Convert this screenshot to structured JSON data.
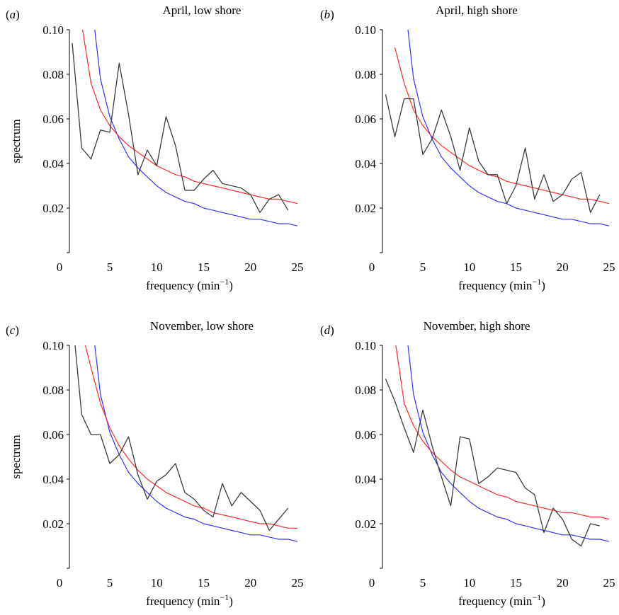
{
  "figure": {
    "xlabel_main": "frequency (min",
    "xlabel_sup": "−1",
    "xlabel_close": ")",
    "ylabel": "spectrum"
  },
  "colors": {
    "observed": "#3a3a3a",
    "fit_red": "#ff2a2a",
    "fit_blue": "#3333ff",
    "axis": "#000000"
  },
  "chart_data": [
    {
      "panel": "a",
      "type": "line",
      "title": "April, low shore",
      "xlim": [
        0,
        25
      ],
      "ylim": [
        0,
        0.1
      ],
      "x_ticks": [
        "0",
        "5",
        "10",
        "15",
        "20",
        "25"
      ],
      "y_ticks": [
        "0.02",
        "0.04",
        "0.06",
        "0.08",
        "0.10"
      ],
      "series": [
        {
          "color": "#3a3a3a",
          "x": [
            1,
            2,
            3,
            4,
            5,
            6,
            7,
            8,
            9,
            10,
            11,
            12,
            13,
            14,
            15,
            16,
            17,
            18,
            19,
            20,
            21,
            22,
            23,
            24
          ],
          "y": [
            0.094,
            0.047,
            0.042,
            0.055,
            0.054,
            0.085,
            0.062,
            0.035,
            0.046,
            0.039,
            0.061,
            0.048,
            0.028,
            0.028,
            0.033,
            0.037,
            0.031,
            0.03,
            0.029,
            0.026,
            0.018,
            0.024,
            0.026,
            0.019
          ]
        },
        {
          "color": "#ff2a2a",
          "x": [
            2.1,
            3,
            4,
            5,
            6,
            7,
            8,
            9,
            10,
            11,
            12,
            13,
            14,
            15,
            16,
            17,
            18,
            19,
            20,
            21,
            22,
            23,
            24,
            25
          ],
          "y": [
            0.1,
            0.076,
            0.064,
            0.057,
            0.052,
            0.048,
            0.045,
            0.042,
            0.039,
            0.037,
            0.035,
            0.034,
            0.032,
            0.031,
            0.03,
            0.029,
            0.028,
            0.027,
            0.026,
            0.025,
            0.024,
            0.024,
            0.023,
            0.022
          ]
        },
        {
          "color": "#3333ff",
          "x": [
            3.4,
            4,
            5,
            6,
            7,
            8,
            9,
            10,
            11,
            12,
            13,
            14,
            15,
            16,
            17,
            18,
            19,
            20,
            21,
            22,
            23,
            24,
            25
          ],
          "y": [
            0.1,
            0.078,
            0.061,
            0.051,
            0.043,
            0.038,
            0.034,
            0.03,
            0.027,
            0.025,
            0.023,
            0.022,
            0.02,
            0.019,
            0.018,
            0.017,
            0.016,
            0.015,
            0.015,
            0.014,
            0.013,
            0.013,
            0.012
          ]
        }
      ]
    },
    {
      "panel": "b",
      "type": "line",
      "title": "April, high shore",
      "xlim": [
        0,
        25
      ],
      "ylim": [
        0,
        0.1
      ],
      "x_ticks": [
        "0",
        "5",
        "10",
        "15",
        "20",
        "25"
      ],
      "y_ticks": [
        "0.02",
        "0.04",
        "0.06",
        "0.08",
        "0.10"
      ],
      "series": [
        {
          "color": "#3a3a3a",
          "x": [
            1,
            2,
            3,
            4,
            5,
            6,
            7,
            8,
            9,
            10,
            11,
            12,
            13,
            14,
            15,
            16,
            17,
            18,
            19,
            20,
            21,
            22,
            23,
            24
          ],
          "y": [
            0.071,
            0.052,
            0.069,
            0.069,
            0.044,
            0.051,
            0.064,
            0.052,
            0.037,
            0.056,
            0.041,
            0.035,
            0.035,
            0.022,
            0.03,
            0.047,
            0.024,
            0.035,
            0.023,
            0.026,
            0.033,
            0.036,
            0.018,
            0.026
          ]
        },
        {
          "color": "#ff2a2a",
          "x": [
            2,
            3,
            4,
            5,
            6,
            7,
            8,
            9,
            10,
            11,
            12,
            13,
            14,
            15,
            16,
            17,
            18,
            19,
            20,
            21,
            22,
            23,
            24,
            25
          ],
          "y": [
            0.092,
            0.076,
            0.064,
            0.057,
            0.052,
            0.048,
            0.045,
            0.042,
            0.039,
            0.037,
            0.035,
            0.034,
            0.032,
            0.031,
            0.03,
            0.029,
            0.028,
            0.027,
            0.026,
            0.025,
            0.024,
            0.024,
            0.023,
            0.022
          ]
        },
        {
          "color": "#3333ff",
          "x": [
            3.4,
            4,
            5,
            6,
            7,
            8,
            9,
            10,
            11,
            12,
            13,
            14,
            15,
            16,
            17,
            18,
            19,
            20,
            21,
            22,
            23,
            24,
            25
          ],
          "y": [
            0.1,
            0.078,
            0.061,
            0.051,
            0.043,
            0.038,
            0.034,
            0.03,
            0.027,
            0.025,
            0.023,
            0.022,
            0.02,
            0.019,
            0.018,
            0.017,
            0.016,
            0.015,
            0.015,
            0.014,
            0.013,
            0.013,
            0.012
          ]
        }
      ]
    },
    {
      "panel": "c",
      "type": "line",
      "title": "November, low shore",
      "xlim": [
        0,
        25
      ],
      "ylim": [
        0,
        0.1
      ],
      "x_ticks": [
        "0",
        "5",
        "10",
        "15",
        "20",
        "25"
      ],
      "y_ticks": [
        "0.02",
        "0.04",
        "0.06",
        "0.08",
        "0.10"
      ],
      "series": [
        {
          "color": "#3a3a3a",
          "x": [
            1.3,
            2,
            3,
            4,
            5,
            6,
            7,
            8,
            9,
            10,
            11,
            12,
            13,
            14,
            15,
            16,
            17,
            18,
            19,
            20,
            21,
            22,
            23,
            24
          ],
          "y": [
            0.1,
            0.069,
            0.06,
            0.06,
            0.047,
            0.051,
            0.059,
            0.042,
            0.031,
            0.039,
            0.042,
            0.047,
            0.034,
            0.031,
            0.026,
            0.023,
            0.038,
            0.028,
            0.034,
            0.03,
            0.026,
            0.017,
            0.022,
            0.027
          ]
        },
        {
          "color": "#ff2a2a",
          "x": [
            2.4,
            3,
            4,
            5,
            6,
            7,
            8,
            9,
            10,
            11,
            12,
            13,
            14,
            15,
            16,
            17,
            18,
            19,
            20,
            21,
            22,
            23,
            24,
            25
          ],
          "y": [
            0.1,
            0.09,
            0.074,
            0.063,
            0.055,
            0.049,
            0.044,
            0.04,
            0.037,
            0.034,
            0.032,
            0.03,
            0.028,
            0.027,
            0.025,
            0.024,
            0.023,
            0.022,
            0.021,
            0.02,
            0.02,
            0.019,
            0.018,
            0.018
          ]
        },
        {
          "color": "#3333ff",
          "x": [
            3.4,
            4,
            5,
            6,
            7,
            8,
            9,
            10,
            11,
            12,
            13,
            14,
            15,
            16,
            17,
            18,
            19,
            20,
            21,
            22,
            23,
            24,
            25
          ],
          "y": [
            0.1,
            0.078,
            0.061,
            0.051,
            0.043,
            0.038,
            0.034,
            0.03,
            0.027,
            0.025,
            0.023,
            0.022,
            0.02,
            0.019,
            0.018,
            0.017,
            0.016,
            0.015,
            0.015,
            0.014,
            0.013,
            0.013,
            0.012
          ]
        }
      ]
    },
    {
      "panel": "d",
      "type": "line",
      "title": "November, high shore",
      "xlim": [
        0,
        25
      ],
      "ylim": [
        0,
        0.1
      ],
      "x_ticks": [
        "0",
        "5",
        "10",
        "15",
        "20",
        "25"
      ],
      "y_ticks": [
        "0.02",
        "0.04",
        "0.06",
        "0.08",
        "0.10"
      ],
      "series": [
        {
          "color": "#3a3a3a",
          "x": [
            1,
            2,
            3,
            4,
            5,
            6,
            7,
            8,
            9,
            10,
            11,
            12,
            13,
            14,
            15,
            16,
            17,
            18,
            19,
            20,
            21,
            22,
            23,
            24
          ],
          "y": [
            0.085,
            0.075,
            0.063,
            0.052,
            0.071,
            0.055,
            0.041,
            0.028,
            0.059,
            0.058,
            0.038,
            0.041,
            0.045,
            0.044,
            0.043,
            0.036,
            0.033,
            0.016,
            0.027,
            0.022,
            0.013,
            0.01,
            0.02,
            0.019
          ]
        },
        {
          "color": "#ff2a2a",
          "x": [
            2.1,
            3,
            4,
            5,
            6,
            7,
            8,
            9,
            10,
            11,
            12,
            13,
            14,
            15,
            16,
            17,
            18,
            19,
            20,
            21,
            22,
            23,
            24,
            25
          ],
          "y": [
            0.1,
            0.074,
            0.064,
            0.057,
            0.052,
            0.048,
            0.044,
            0.041,
            0.039,
            0.037,
            0.035,
            0.033,
            0.032,
            0.03,
            0.029,
            0.028,
            0.027,
            0.026,
            0.025,
            0.025,
            0.024,
            0.023,
            0.023,
            0.022
          ]
        },
        {
          "color": "#3333ff",
          "x": [
            3.4,
            4,
            5,
            6,
            7,
            8,
            9,
            10,
            11,
            12,
            13,
            14,
            15,
            16,
            17,
            18,
            19,
            20,
            21,
            22,
            23,
            24,
            25
          ],
          "y": [
            0.1,
            0.078,
            0.061,
            0.051,
            0.043,
            0.038,
            0.034,
            0.03,
            0.027,
            0.025,
            0.023,
            0.022,
            0.02,
            0.019,
            0.018,
            0.017,
            0.016,
            0.015,
            0.015,
            0.014,
            0.013,
            0.013,
            0.012
          ]
        }
      ]
    }
  ]
}
